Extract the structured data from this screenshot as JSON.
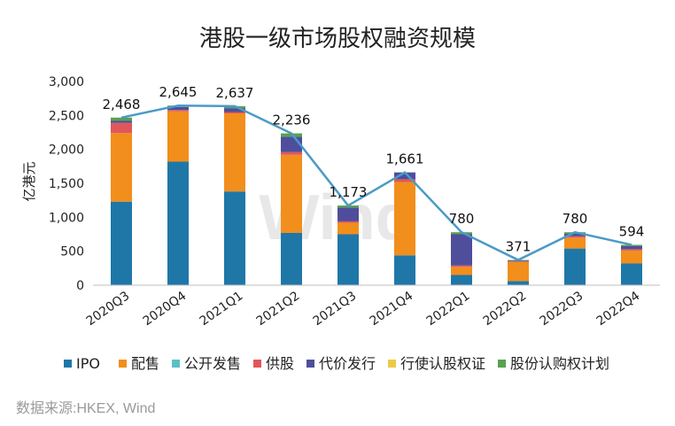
{
  "chart_data": {
    "type": "bar",
    "stacked": true,
    "title": "港股一级市场股权融资规模",
    "ylabel": "亿港元",
    "xlabel": "",
    "ylim": [
      0,
      3000
    ],
    "yticks": [
      "0",
      "500",
      "1,000",
      "1,500",
      "2,000",
      "2,500",
      "3,000"
    ],
    "ytick_values": [
      0,
      500,
      1000,
      1500,
      2000,
      2500,
      3000
    ],
    "categories": [
      "2020Q3",
      "2020Q4",
      "2021Q1",
      "2021Q2",
      "2021Q3",
      "2021Q4",
      "2022Q1",
      "2022Q2",
      "2022Q3",
      "2022Q4"
    ],
    "series": [
      {
        "name": "IPO",
        "color": "#1f77a8",
        "values": [
          1230,
          1820,
          1380,
          770,
          750,
          440,
          150,
          60,
          540,
          320
        ]
      },
      {
        "name": "配售",
        "color": "#f28e1c",
        "values": [
          1010,
          740,
          1150,
          1150,
          170,
          1080,
          120,
          280,
          160,
          190
        ]
      },
      {
        "name": "公开发售",
        "color": "#5bc0c8",
        "values": [
          0,
          0,
          0,
          0,
          0,
          0,
          0,
          0,
          0,
          0
        ]
      },
      {
        "name": "供股",
        "color": "#e15759",
        "values": [
          150,
          20,
          20,
          40,
          20,
          40,
          20,
          10,
          20,
          20
        ]
      },
      {
        "name": "代价发行",
        "color": "#4e4e9c",
        "values": [
          30,
          45,
          57,
          226,
          203,
          101,
          460,
          10,
          40,
          44
        ]
      },
      {
        "name": "行使认股权证",
        "color": "#edc948",
        "values": [
          0,
          0,
          0,
          0,
          0,
          0,
          0,
          0,
          0,
          0
        ]
      },
      {
        "name": "股份认购权计划",
        "color": "#59a14f",
        "values": [
          48,
          20,
          30,
          50,
          30,
          0,
          30,
          11,
          20,
          20
        ]
      }
    ],
    "line": {
      "color": "#4a9bc7",
      "values": [
        2468,
        2645,
        2637,
        2236,
        1173,
        1661,
        780,
        371,
        780,
        594
      ],
      "labels": [
        "2,468",
        "2,645",
        "2,637",
        "2,236",
        "1,173",
        "1,661",
        "780",
        "371",
        "780",
        "594"
      ]
    },
    "grid": false,
    "legend": "bottom"
  },
  "watermark": "Wind",
  "source": "数据来源:HKEX, Wind"
}
